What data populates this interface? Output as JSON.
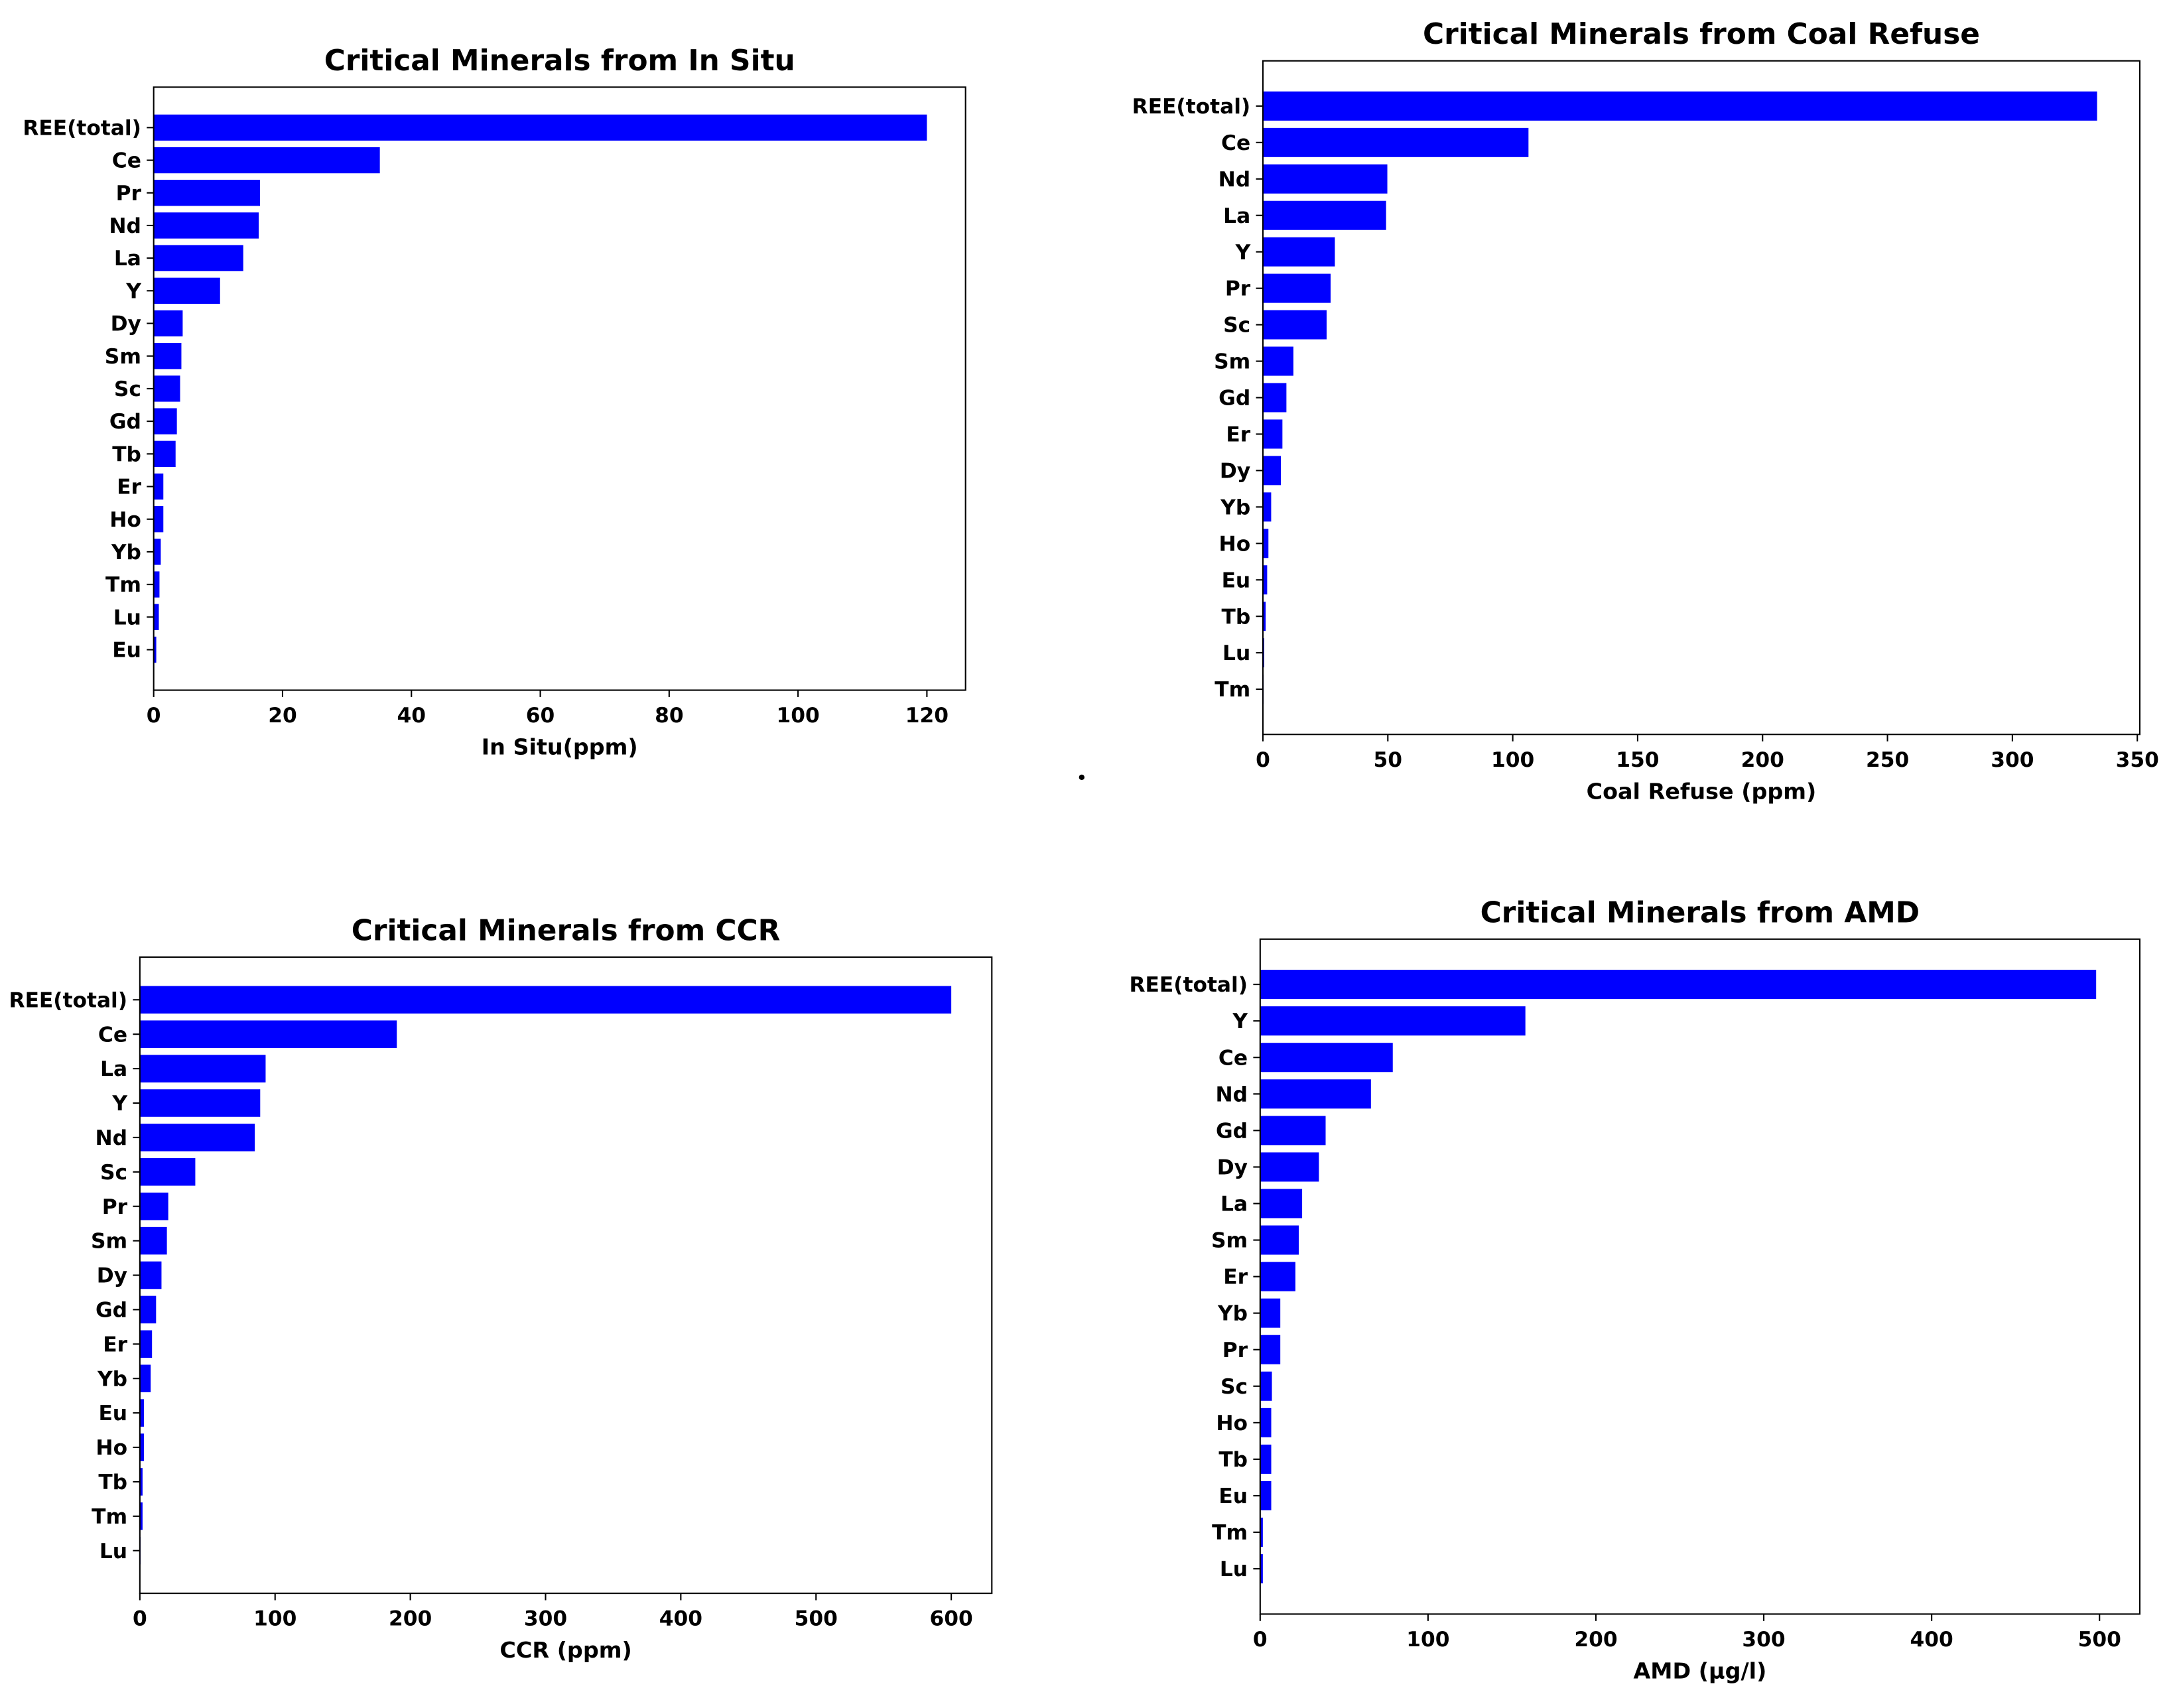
{
  "chart_data": [
    {
      "type": "barh",
      "title": "Critical Minerals from In Situ",
      "xlabel": "In Situ(ppm)",
      "color": "#0000ff",
      "categories": [
        "REE(total)",
        "Ce",
        "Pr",
        "Nd",
        "La",
        "Y",
        "Dy",
        "Sm",
        "Sc",
        "Gd",
        "Tb",
        "Er",
        "Ho",
        "Yb",
        "Tm",
        "Lu",
        "Eu"
      ],
      "values": [
        120,
        35.1,
        16.5,
        16.3,
        13.9,
        10.3,
        4.5,
        4.3,
        4.1,
        3.6,
        3.4,
        1.5,
        1.5,
        1.1,
        0.9,
        0.8,
        0.4
      ],
      "xlim": [
        0,
        126
      ],
      "xticks": [
        0,
        20,
        40,
        60,
        80,
        100,
        120
      ]
    },
    {
      "type": "barh",
      "title": "Critical Minerals from Coal Refuse",
      "xlabel": "Coal Refuse (ppm)",
      "color": "#0000ff",
      "categories": [
        "REE(total)",
        "Ce",
        "Nd",
        "La",
        "Y",
        "Pr",
        "Sc",
        "Sm",
        "Gd",
        "Er",
        "Dy",
        "Yb",
        "Ho",
        "Eu",
        "Tb",
        "Lu",
        "Tm"
      ],
      "values": [
        333.9,
        106.3,
        49.8,
        49.3,
        28.8,
        27.1,
        25.5,
        12.2,
        9.4,
        7.8,
        7.2,
        3.3,
        2.2,
        1.7,
        1.1,
        0.5,
        0.3
      ],
      "xlim": [
        0,
        351
      ],
      "xticks": [
        0,
        50,
        100,
        150,
        200,
        250,
        300,
        350
      ]
    },
    {
      "type": "barh",
      "title": "Critical Minerals from CCR",
      "xlabel": "CCR (ppm)",
      "color": "#0000ff",
      "categories": [
        "REE(total)",
        "Ce",
        "La",
        "Y",
        "Nd",
        "Sc",
        "Pr",
        "Sm",
        "Dy",
        "Gd",
        "Er",
        "Yb",
        "Eu",
        "Ho",
        "Tb",
        "Tm",
        "Lu"
      ],
      "values": [
        600,
        190,
        93,
        89,
        85,
        41,
        21,
        20,
        16,
        12,
        9,
        8,
        3,
        3,
        2,
        2,
        0.5
      ],
      "xlim": [
        0,
        630
      ],
      "xticks": [
        0,
        100,
        200,
        300,
        400,
        500,
        600
      ]
    },
    {
      "type": "barh",
      "title": "Critical Minerals from AMD",
      "xlabel": "AMD (µg/l)",
      "color": "#0000ff",
      "categories": [
        "REE(total)",
        "Y",
        "Ce",
        "Nd",
        "Gd",
        "Dy",
        "La",
        "Sm",
        "Er",
        "Yb",
        "Pr",
        "Sc",
        "Ho",
        "Tb",
        "Eu",
        "Tm",
        "Lu"
      ],
      "values": [
        498,
        158,
        79,
        66,
        39,
        35,
        25,
        23,
        21,
        12,
        12,
        7,
        6.6,
        6.6,
        6.6,
        1.6,
        1.6
      ],
      "xlim": [
        0,
        524
      ],
      "xticks": [
        0,
        100,
        200,
        300,
        400,
        500
      ]
    }
  ]
}
